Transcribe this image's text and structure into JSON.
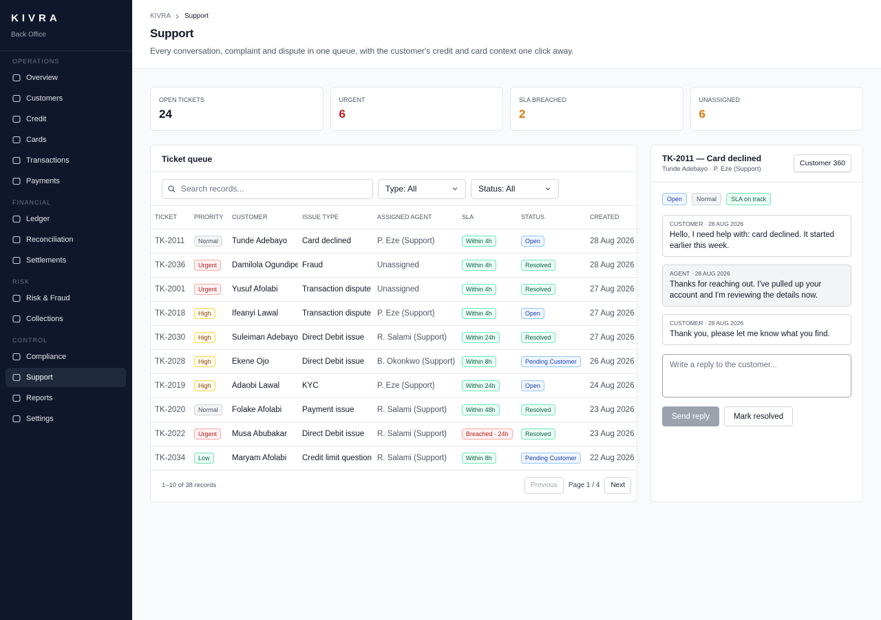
{
  "sidebar": {
    "brand": "KIVRA",
    "subtitle": "Back Office",
    "active": "Support",
    "sections": [
      {
        "title": "OPERATIONS",
        "items": [
          "Overview",
          "Customers",
          "Credit",
          "Cards",
          "Transactions",
          "Payments"
        ]
      },
      {
        "title": "FINANCIAL",
        "items": [
          "Ledger",
          "Reconciliation",
          "Settlements"
        ]
      },
      {
        "title": "RISK",
        "items": [
          "Risk & Fraud",
          "Collections"
        ]
      },
      {
        "title": "CONTROL",
        "items": [
          "Compliance",
          "Support",
          "Reports",
          "Settings"
        ]
      }
    ]
  },
  "header": {
    "breadcrumb": [
      "KIVRA",
      "Support"
    ],
    "title": "Support",
    "subtitle": "Every conversation, complaint and dispute in one queue, with the customer's credit and card context one click away."
  },
  "stats": [
    {
      "label": "OPEN TICKETS",
      "value": 24,
      "color": "#111827"
    },
    {
      "label": "URGENT",
      "value": 6,
      "color": "#b91c1c"
    },
    {
      "label": "SLA BREACHED",
      "value": 2,
      "color": "#d97706"
    },
    {
      "label": "UNASSIGNED",
      "value": 6,
      "color": "#d97706"
    }
  ],
  "queue": {
    "title": "Ticket queue",
    "search": "Search records...",
    "filters": [
      "Type: All",
      "Status: All"
    ],
    "columns": [
      "TICKET",
      "PRIORITY",
      "CUSTOMER",
      "ISSUE TYPE",
      "ASSIGNED AGENT",
      "SLA",
      "STATUS",
      "CREATED"
    ],
    "rows": [
      {
        "ticket": "TK-2011",
        "priority": {
          "text": "Normal",
          "tone": "gray"
        },
        "customer": "Tunde Adebayo",
        "issue": "Card declined",
        "agent": "P. Eze (Support)",
        "sla": {
          "text": "Within 4h",
          "tone": "green"
        },
        "status": {
          "text": "Open",
          "tone": "blue"
        },
        "created": "28 Aug 2026"
      },
      {
        "ticket": "TK-2036",
        "priority": {
          "text": "Urgent",
          "tone": "red"
        },
        "customer": "Damilola Ogundipe",
        "issue": "Fraud",
        "agent": "Unassigned",
        "sla": {
          "text": "Within 4h",
          "tone": "green"
        },
        "status": {
          "text": "Resolved",
          "tone": "green"
        },
        "created": "28 Aug 2026"
      },
      {
        "ticket": "TK-2001",
        "priority": {
          "text": "Urgent",
          "tone": "red"
        },
        "customer": "Yusuf Afolabi",
        "issue": "Transaction dispute",
        "agent": "Unassigned",
        "sla": {
          "text": "Within 4h",
          "tone": "green"
        },
        "status": {
          "text": "Resolved",
          "tone": "green"
        },
        "created": "27 Aug 2026"
      },
      {
        "ticket": "TK-2018",
        "priority": {
          "text": "High",
          "tone": "amber"
        },
        "customer": "Ifeanyi Lawal",
        "issue": "Transaction dispute",
        "agent": "P. Eze (Support)",
        "sla": {
          "text": "Within 4h",
          "tone": "green"
        },
        "status": {
          "text": "Open",
          "tone": "blue"
        },
        "created": "27 Aug 2026"
      },
      {
        "ticket": "TK-2030",
        "priority": {
          "text": "High",
          "tone": "amber"
        },
        "customer": "Suleiman Adebayo",
        "issue": "Direct Debit issue",
        "agent": "R. Salami (Support)",
        "sla": {
          "text": "Within 24h",
          "tone": "green"
        },
        "status": {
          "text": "Resolved",
          "tone": "green"
        },
        "created": "27 Aug 2026"
      },
      {
        "ticket": "TK-2028",
        "priority": {
          "text": "High",
          "tone": "amber"
        },
        "customer": "Ekene Ojo",
        "issue": "Direct Debit issue",
        "agent": "B. Okonkwo (Support)",
        "sla": {
          "text": "Within 8h",
          "tone": "green"
        },
        "status": {
          "text": "Pending Customer",
          "tone": "blue"
        },
        "created": "26 Aug 2026"
      },
      {
        "ticket": "TK-2019",
        "priority": {
          "text": "High",
          "tone": "amber"
        },
        "customer": "Adaobi Lawal",
        "issue": "KYC",
        "agent": "P. Eze (Support)",
        "sla": {
          "text": "Within 24h",
          "tone": "green"
        },
        "status": {
          "text": "Open",
          "tone": "blue"
        },
        "created": "24 Aug 2026"
      },
      {
        "ticket": "TK-2020",
        "priority": {
          "text": "Normal",
          "tone": "gray"
        },
        "customer": "Folake Afolabi",
        "issue": "Payment issue",
        "agent": "R. Salami (Support)",
        "sla": {
          "text": "Within 48h",
          "tone": "green"
        },
        "status": {
          "text": "Resolved",
          "tone": "green"
        },
        "created": "23 Aug 2026"
      },
      {
        "ticket": "TK-2022",
        "priority": {
          "text": "Urgent",
          "tone": "red"
        },
        "customer": "Musa Abubakar",
        "issue": "Direct Debit issue",
        "agent": "R. Salami (Support)",
        "sla": {
          "text": "Breached · 24h",
          "tone": "red"
        },
        "status": {
          "text": "Resolved",
          "tone": "green"
        },
        "created": "23 Aug 2026"
      },
      {
        "ticket": "TK-2034",
        "priority": {
          "text": "Low",
          "tone": "green"
        },
        "customer": "Maryam Afolabi",
        "issue": "Credit limit question",
        "agent": "R. Salami (Support)",
        "sla": {
          "text": "Within 8h",
          "tone": "green"
        },
        "status": {
          "text": "Pending Customer",
          "tone": "blue"
        },
        "created": "22 Aug 2026"
      }
    ],
    "footer": "1–10 of 38 records",
    "pagination": {
      "previous": "Previous",
      "page": "Page 1 / 4",
      "next": "Next"
    }
  },
  "detail": {
    "title": "TK-2011 — Card declined",
    "subtitle": "Tunde Adebayo · P. Eze (Support)",
    "button": "Customer 360",
    "tags": [
      {
        "text": "Open",
        "tone": "blue"
      },
      {
        "text": "Normal",
        "tone": "gray"
      },
      {
        "text": "SLA on track",
        "tone": "green"
      }
    ],
    "messages": [
      {
        "meta": "CUSTOMER · 28 AUG 2026",
        "text": "Hello, I need help with: card declined. It started earlier this week.",
        "background": "#ffffff"
      },
      {
        "meta": "AGENT · 28 AUG 2026",
        "text": "Thanks for reaching out. I've pulled up your account and I'm reviewing the details now.",
        "background": "#f3f4f6"
      },
      {
        "meta": "CUSTOMER · 28 AUG 2026",
        "text": "Thank you, please let me know what you find.",
        "background": "#ffffff"
      }
    ],
    "reply": "Write a reply to the customer...",
    "send": "Send reply",
    "resolve": "Mark resolved"
  }
}
